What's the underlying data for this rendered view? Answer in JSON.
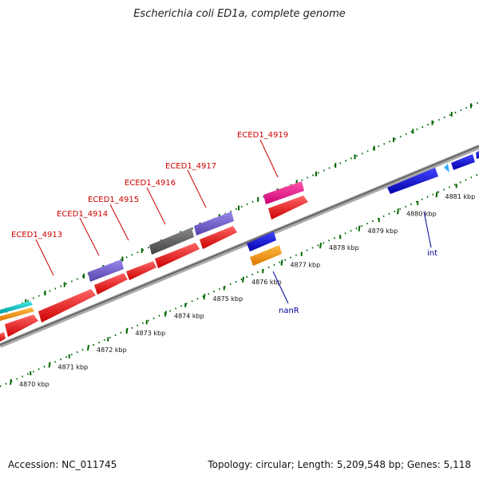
{
  "title": "Escherichia coli ED1a, complete genome",
  "accession": "Accession: NC_011745",
  "summary": "Topology: circular; Length: 5,209,548 bp; Genes: 5,118",
  "scale": {
    "ticks": [
      "4870 kbp",
      "4871 kbp",
      "4872 kbp",
      "4873 kbp",
      "4874 kbp",
      "4875 kbp",
      "4876 kbp",
      "4877 kbp",
      "4878 kbp",
      "4879 kbp",
      "4880 kbp",
      "4881 kbp"
    ]
  },
  "gene_labels": [
    {
      "text": "ECED1_4913",
      "color": "#cc0000"
    },
    {
      "text": "ECED1_4914",
      "color": "#cc0000"
    },
    {
      "text": "ECED1_4915",
      "color": "#cc0000"
    },
    {
      "text": "ECED1_4916",
      "color": "#cc0000"
    },
    {
      "text": "ECED1_4917",
      "color": "#cc0000"
    },
    {
      "text": "ECED1_4919",
      "color": "#cc0000"
    },
    {
      "text": "nanR",
      "color": "#000099"
    },
    {
      "text": "int",
      "color": "#000099"
    }
  ],
  "colors": {
    "red_gene": "#ff0000",
    "blue_gene": "#0000ee",
    "purple_gene": "#7766dd",
    "gray_gene": "#666666",
    "pink_gene": "#ff1493",
    "orange_gene": "#ff9900",
    "cyan_gene": "#00cccc",
    "backbone": "#888888",
    "tick_green": "#006600"
  }
}
